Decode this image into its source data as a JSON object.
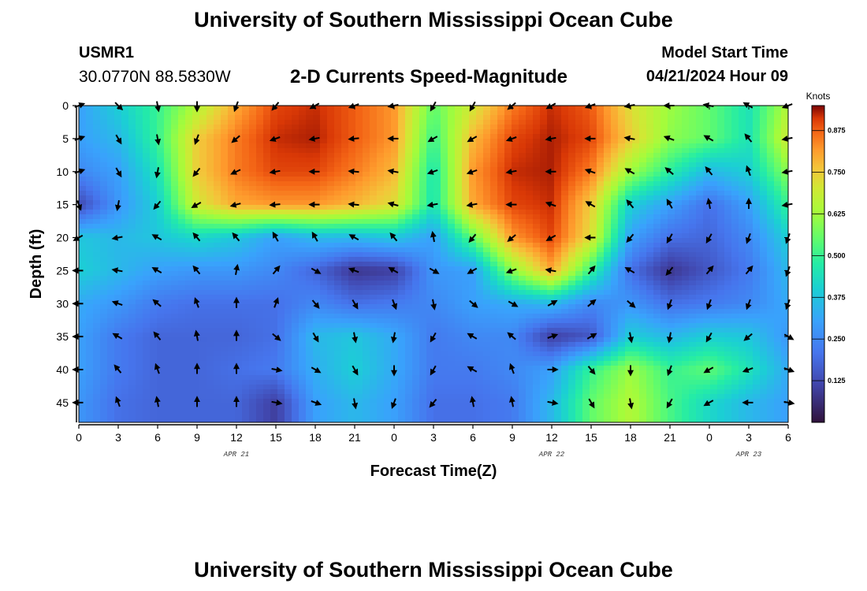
{
  "header": {
    "title": "University of Southern Mississippi Ocean Cube",
    "station_id": "USMR1",
    "coordinates": "30.0770N  88.5830W",
    "chart_heading": "2-D Currents Speed-Magnitude",
    "model_start_label": "Model Start Time",
    "model_start_value": "04/21/2024 Hour 09"
  },
  "footer": {
    "title": "University of Southern Mississippi Ocean Cube"
  },
  "chart_data": {
    "type": "heatmap",
    "title": "2-D Currents Speed-Magnitude",
    "xlabel": "Forecast Time(Z)",
    "ylabel": "Depth (ft)",
    "x_tick_labels": [
      "0",
      "3",
      "6",
      "9",
      "12",
      "15",
      "18",
      "21",
      "0",
      "3",
      "6",
      "9",
      "12",
      "15",
      "18",
      "21",
      "0",
      "3",
      "6"
    ],
    "x_hours_from_start": [
      -9,
      -6,
      -3,
      0,
      3,
      6,
      9,
      12,
      15,
      18,
      21,
      24,
      27,
      30,
      33,
      36,
      39,
      42,
      45
    ],
    "date_labels": [
      {
        "label": "APR 21",
        "hour": 3
      },
      {
        "label": "APR 22",
        "hour": 27
      },
      {
        "label": "APR 23",
        "hour": 42
      }
    ],
    "y_tick_labels": [
      "0",
      "5",
      "10",
      "15",
      "20",
      "25",
      "30",
      "35",
      "40",
      "45"
    ],
    "depths_ft": [
      0,
      5,
      10,
      15,
      20,
      25,
      30,
      35,
      40,
      45
    ],
    "ylim": [
      48,
      0
    ],
    "colorbar": {
      "unit": "Knots",
      "min": 0.0,
      "max": 0.95,
      "ticks": [
        "0.125",
        "0.250",
        "0.375",
        "0.500",
        "0.625",
        "0.750",
        "0.875"
      ],
      "tick_values": [
        0.125,
        0.25,
        0.375,
        0.5,
        0.625,
        0.75,
        0.875
      ]
    },
    "speed_knots": [
      [
        0.3,
        0.4,
        0.5,
        0.65,
        0.8,
        0.9,
        0.92,
        0.88,
        0.82,
        0.55,
        0.7,
        0.85,
        0.92,
        0.88,
        0.72,
        0.62,
        0.55,
        0.45,
        0.65
      ],
      [
        0.3,
        0.35,
        0.5,
        0.75,
        0.85,
        0.92,
        0.93,
        0.88,
        0.82,
        0.5,
        0.78,
        0.9,
        0.93,
        0.9,
        0.75,
        0.6,
        0.55,
        0.45,
        0.7
      ],
      [
        0.25,
        0.3,
        0.45,
        0.75,
        0.85,
        0.9,
        0.9,
        0.85,
        0.78,
        0.45,
        0.82,
        0.92,
        0.93,
        0.85,
        0.62,
        0.48,
        0.35,
        0.4,
        0.6
      ],
      [
        0.12,
        0.28,
        0.4,
        0.7,
        0.8,
        0.82,
        0.82,
        0.78,
        0.72,
        0.45,
        0.8,
        0.9,
        0.92,
        0.75,
        0.4,
        0.3,
        0.2,
        0.3,
        0.5
      ],
      [
        0.38,
        0.35,
        0.38,
        0.42,
        0.38,
        0.3,
        0.35,
        0.35,
        0.38,
        0.3,
        0.55,
        0.82,
        0.9,
        0.72,
        0.3,
        0.2,
        0.18,
        0.25,
        0.4
      ],
      [
        0.4,
        0.35,
        0.3,
        0.28,
        0.28,
        0.25,
        0.18,
        0.08,
        0.1,
        0.28,
        0.3,
        0.6,
        0.8,
        0.5,
        0.2,
        0.08,
        0.15,
        0.22,
        0.35
      ],
      [
        0.32,
        0.28,
        0.22,
        0.2,
        0.2,
        0.2,
        0.25,
        0.2,
        0.22,
        0.25,
        0.3,
        0.32,
        0.35,
        0.25,
        0.28,
        0.2,
        0.22,
        0.25,
        0.32
      ],
      [
        0.3,
        0.22,
        0.18,
        0.18,
        0.18,
        0.2,
        0.35,
        0.38,
        0.32,
        0.22,
        0.25,
        0.25,
        0.1,
        0.15,
        0.4,
        0.35,
        0.4,
        0.38,
        0.28
      ],
      [
        0.3,
        0.22,
        0.18,
        0.18,
        0.2,
        0.22,
        0.33,
        0.4,
        0.32,
        0.22,
        0.22,
        0.25,
        0.3,
        0.5,
        0.62,
        0.5,
        0.55,
        0.45,
        0.32
      ],
      [
        0.28,
        0.2,
        0.18,
        0.18,
        0.18,
        0.1,
        0.3,
        0.35,
        0.3,
        0.2,
        0.2,
        0.22,
        0.35,
        0.55,
        0.65,
        0.52,
        0.42,
        0.35,
        0.3
      ]
    ],
    "arrow_direction_deg": [
      [
        70,
        135,
        170,
        180,
        200,
        220,
        240,
        250,
        260,
        210,
        210,
        230,
        240,
        250,
        260,
        270,
        280,
        300,
        250
      ],
      [
        70,
        150,
        170,
        200,
        230,
        250,
        260,
        265,
        270,
        240,
        240,
        250,
        260,
        270,
        280,
        290,
        300,
        320,
        260
      ],
      [
        70,
        150,
        190,
        220,
        245,
        260,
        270,
        275,
        280,
        250,
        250,
        260,
        270,
        290,
        300,
        310,
        320,
        340,
        260
      ],
      [
        160,
        190,
        220,
        240,
        255,
        265,
        270,
        275,
        285,
        260,
        260,
        270,
        290,
        300,
        320,
        330,
        350,
        0,
        260
      ],
      [
        240,
        260,
        300,
        320,
        320,
        330,
        330,
        300,
        320,
        350,
        220,
        230,
        240,
        270,
        220,
        210,
        210,
        200,
        200
      ],
      [
        270,
        280,
        300,
        320,
        10,
        40,
        120,
        290,
        300,
        120,
        240,
        250,
        280,
        40,
        300,
        220,
        40,
        40,
        200
      ],
      [
        270,
        290,
        310,
        340,
        0,
        20,
        140,
        150,
        160,
        170,
        130,
        120,
        60,
        50,
        130,
        200,
        200,
        200,
        200
      ],
      [
        270,
        300,
        320,
        350,
        0,
        130,
        150,
        170,
        190,
        210,
        300,
        310,
        70,
        60,
        170,
        190,
        210,
        230,
        120
      ],
      [
        270,
        320,
        340,
        0,
        0,
        100,
        120,
        150,
        180,
        210,
        300,
        340,
        90,
        140,
        180,
        200,
        240,
        250,
        110
      ],
      [
        270,
        340,
        350,
        0,
        0,
        100,
        110,
        170,
        200,
        220,
        350,
        350,
        100,
        150,
        170,
        210,
        240,
        270,
        100
      ]
    ]
  }
}
